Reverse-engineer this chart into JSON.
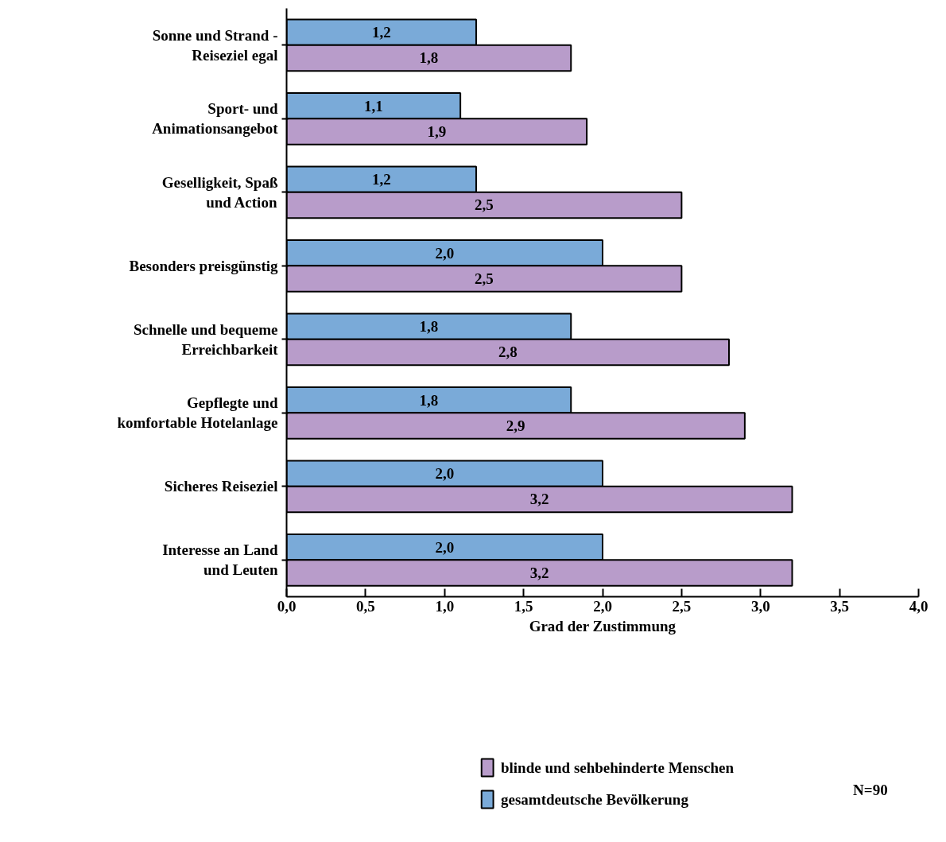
{
  "chart_data": {
    "type": "bar",
    "orientation": "horizontal",
    "xlabel": "Grad der Zustimmung",
    "categories": [
      "Sonne und Strand -\nReiseziel egal",
      "Sport- und\nAnimationsangebot",
      "Geselligkeit, Spaß\nund Action",
      "Besonders preisgünstig",
      "Schnelle und bequeme\nErreichbarkeit",
      "Gepflegte und\nkomfortable Hotelanlage",
      "Sicheres Reiseziel",
      "Interesse an Land\nund Leuten"
    ],
    "series": [
      {
        "name": "gesamtdeutsche Bevölkerung",
        "color": "#7aaad8",
        "values": [
          1.2,
          1.1,
          1.2,
          2.0,
          1.8,
          1.8,
          2.0,
          2.0
        ],
        "value_labels": [
          "1,2",
          "1,1",
          "1,2",
          "2,0",
          "1,8",
          "1,8",
          "2,0",
          "2,0"
        ]
      },
      {
        "name": "blinde und sehbehinderte Menschen",
        "color": "#b89cca",
        "values": [
          1.8,
          1.9,
          2.5,
          2.5,
          2.8,
          2.9,
          3.2,
          3.2
        ],
        "value_labels": [
          "1,8",
          "1,9",
          "2,5",
          "2,5",
          "2,8",
          "2,9",
          "3,2",
          "3,2"
        ]
      }
    ],
    "xlim": [
      0,
      4
    ],
    "xticks": [
      {
        "value": 0,
        "label": "0,0"
      },
      {
        "value": 0.5,
        "label": "0,5"
      },
      {
        "value": 1,
        "label": "1,0"
      },
      {
        "value": 1.5,
        "label": "1,5"
      },
      {
        "value": 2,
        "label": "2,0"
      },
      {
        "value": 2.5,
        "label": "2,5"
      },
      {
        "value": 3,
        "label": "3,0"
      },
      {
        "value": 3.5,
        "label": "3,5"
      },
      {
        "value": 4,
        "label": "4,0"
      }
    ],
    "grid": false,
    "legend": "bottom",
    "annotations": [
      "N=90"
    ]
  }
}
